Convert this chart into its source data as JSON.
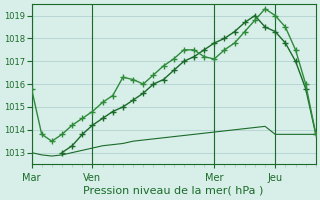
{
  "background_color": "#d8eee8",
  "grid_color": "#aacccc",
  "line_color_dark": "#1a6b2a",
  "line_color_mid": "#2d8b3a",
  "title": "Pression niveau de la mer( hPa )",
  "xlabel": "Pression niveau de la mer( hPa )",
  "ylim": [
    1012.5,
    1019.5
  ],
  "yticks": [
    1013,
    1014,
    1015,
    1016,
    1017,
    1018,
    1019
  ],
  "day_labels": [
    "Mar",
    "Ven",
    "Mer",
    "Jeu"
  ],
  "day_positions": [
    0,
    6,
    18,
    24
  ],
  "vline_positions": [
    0,
    6,
    18,
    24
  ],
  "line1": {
    "x": [
      0,
      1,
      2,
      3,
      4,
      5,
      6,
      7,
      8,
      9,
      10,
      11,
      12,
      13,
      14,
      15,
      16,
      17,
      18,
      19,
      20,
      21,
      22,
      23,
      24,
      25,
      26,
      27,
      28
    ],
    "y": [
      1015.8,
      1013.8,
      1013.5,
      1013.8,
      1014.2,
      1014.5,
      1014.8,
      1015.2,
      1015.5,
      1016.3,
      1016.2,
      1016.0,
      1016.4,
      1016.8,
      1017.1,
      1017.5,
      1017.5,
      1017.2,
      1017.1,
      1017.5,
      1017.8,
      1018.3,
      1018.8,
      1019.3,
      1019.0,
      1018.5,
      1017.5,
      1016.0,
      1013.8
    ],
    "marker": "+"
  },
  "line2": {
    "x": [
      3,
      4,
      5,
      6,
      7,
      8,
      9,
      10,
      11,
      12,
      13,
      14,
      15,
      16,
      17,
      18,
      19,
      20,
      21,
      22,
      23,
      24,
      25,
      26,
      27,
      28
    ],
    "y": [
      1013.0,
      1013.3,
      1013.8,
      1014.2,
      1014.5,
      1014.8,
      1015.0,
      1015.3,
      1015.6,
      1016.0,
      1016.2,
      1016.6,
      1017.0,
      1017.2,
      1017.5,
      1017.8,
      1018.0,
      1018.3,
      1018.7,
      1019.0,
      1018.5,
      1018.3,
      1017.8,
      1017.0,
      1015.8,
      1013.8
    ],
    "marker": "+"
  },
  "line3": {
    "x": [
      0,
      1,
      2,
      3,
      4,
      5,
      6,
      7,
      8,
      9,
      10,
      11,
      12,
      13,
      14,
      15,
      16,
      17,
      18,
      19,
      20,
      21,
      22,
      23,
      24,
      25,
      26,
      27,
      28
    ],
    "y": [
      1013.0,
      1012.9,
      1012.85,
      1012.9,
      1013.0,
      1013.1,
      1013.2,
      1013.3,
      1013.35,
      1013.4,
      1013.5,
      1013.55,
      1013.6,
      1013.65,
      1013.7,
      1013.75,
      1013.8,
      1013.85,
      1013.9,
      1013.95,
      1014.0,
      1014.05,
      1014.1,
      1014.15,
      1013.8,
      1013.8,
      1013.8,
      1013.8,
      1013.8
    ],
    "marker": null
  }
}
